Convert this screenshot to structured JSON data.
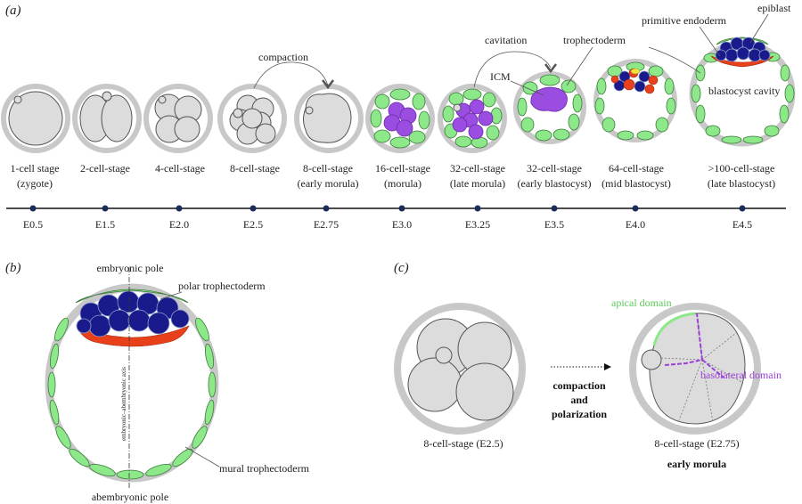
{
  "panels": {
    "a": "(a)",
    "b": "(b)",
    "c": "(c)"
  },
  "panel_a": {
    "stages": [
      {
        "name": "1-cell stage",
        "sub": "(zygote)",
        "time": "E0.5"
      },
      {
        "name": "2-cell-stage",
        "sub": "",
        "time": "E1.5"
      },
      {
        "name": "4-cell-stage",
        "sub": "",
        "time": "E2.0"
      },
      {
        "name": "8-cell-stage",
        "sub": "",
        "time": "E2.5"
      },
      {
        "name": "8-cell-stage",
        "sub": "(early morula)",
        "time": "E2.75"
      },
      {
        "name": "16-cell-stage",
        "sub": "(morula)",
        "time": "E3.0"
      },
      {
        "name": "32-cell-stage",
        "sub": "(late morula)",
        "time": "E3.25"
      },
      {
        "name": "32-cell-stage",
        "sub": "(early blastocyst)",
        "time": "E3.5"
      },
      {
        "name": "64-cell-stage",
        "sub": "(mid blastocyst)",
        "time": "E4.0"
      },
      {
        "name": ">100-cell-stage",
        "sub": "(late blastocyst)",
        "time": "E4.5"
      }
    ],
    "process_labels": {
      "compaction": "compaction",
      "cavitation": "cavitation"
    },
    "structure_labels": {
      "icm": "ICM",
      "trophectoderm": "trophectoderm",
      "primitive_endoderm": "primitive endoderm",
      "epiblast": "epiblast",
      "blastocyst_cavity": "blastocyst cavity"
    }
  },
  "panel_b": {
    "embryonic_pole": "embryonic pole",
    "abembryonic_pole": "abembryonic pole",
    "polar_trophectoderm": "polar trophectoderm",
    "mural_trophectoderm": "mural trophectoderm",
    "axis_label": "embryonic–abembryonic axis"
  },
  "panel_c": {
    "left_label": "8-cell-stage (E2.5)",
    "right_label": "8-cell-stage (E2.75)",
    "right_sublabel": "early morula",
    "process_line1": "compaction",
    "process_line2": "and",
    "process_line3": "polarization",
    "apical_domain": "apical domain",
    "basolateral_domain": "basolateral domain"
  },
  "colors": {
    "trophectoderm": "#8de88a",
    "icm": "#9a4de0",
    "epiblast": "#1a1a8c",
    "primitive_endoderm": "#e8401a",
    "apical": "#8de88a",
    "basolateral": "#9a40d8"
  }
}
